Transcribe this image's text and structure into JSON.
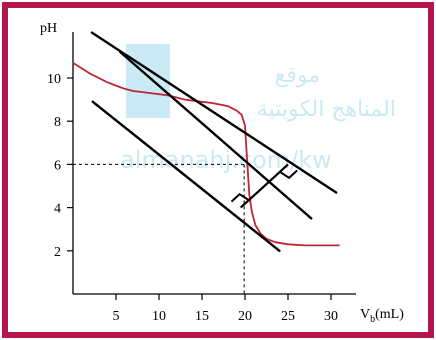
{
  "chart_data": {
    "type": "line",
    "title": "",
    "ylabel": "pH",
    "xlabel_main": "V",
    "xlabel_sub": "b",
    "xlabel_unit": "(mL)",
    "xlim": [
      0,
      34
    ],
    "ylim": [
      0,
      12.2
    ],
    "x_ticks": [
      5,
      10,
      15,
      20,
      25,
      30
    ],
    "y_ticks": [
      2,
      4,
      6,
      8,
      10
    ],
    "series": [
      {
        "x": [
          0,
          1,
          2,
          3,
          4,
          5,
          6,
          7,
          8,
          9,
          10,
          11,
          12,
          13,
          14,
          15,
          16,
          17,
          18,
          19,
          19.6,
          20,
          20.2,
          20.5,
          20.8,
          21.2,
          21.8,
          22.5,
          23.5,
          25,
          27,
          29,
          31
        ],
        "y": [
          10.7,
          10.45,
          10.2,
          10.0,
          9.8,
          9.65,
          9.5,
          9.4,
          9.35,
          9.3,
          9.25,
          9.2,
          9.1,
          9.0,
          8.95,
          8.9,
          8.85,
          8.78,
          8.7,
          8.5,
          8.3,
          7.8,
          6.5,
          4.6,
          3.8,
          3.2,
          2.8,
          2.55,
          2.4,
          2.3,
          2.25,
          2.25,
          2.25
        ]
      }
    ],
    "equivalence_point": {
      "x": 19.9,
      "y": 6.0
    },
    "tangent_lines": [
      {
        "from": [
          2.2,
          12.1
        ],
        "to": [
          30.6,
          4.7
        ]
      },
      {
        "from": [
          5.5,
          11.2
        ],
        "to": [
          27.7,
          3.5
        ]
      },
      {
        "from": [
          2.3,
          8.9
        ],
        "to": [
          24.0,
          2.0
        ]
      }
    ],
    "perpendicular_segment": {
      "from": [
        25.0,
        6.0
      ],
      "to": [
        19.5,
        4.0
      ]
    },
    "watermark": {
      "line1": "موقع",
      "line2": "المناهج الكويتية",
      "line3": "almanahj.com/kw"
    }
  }
}
